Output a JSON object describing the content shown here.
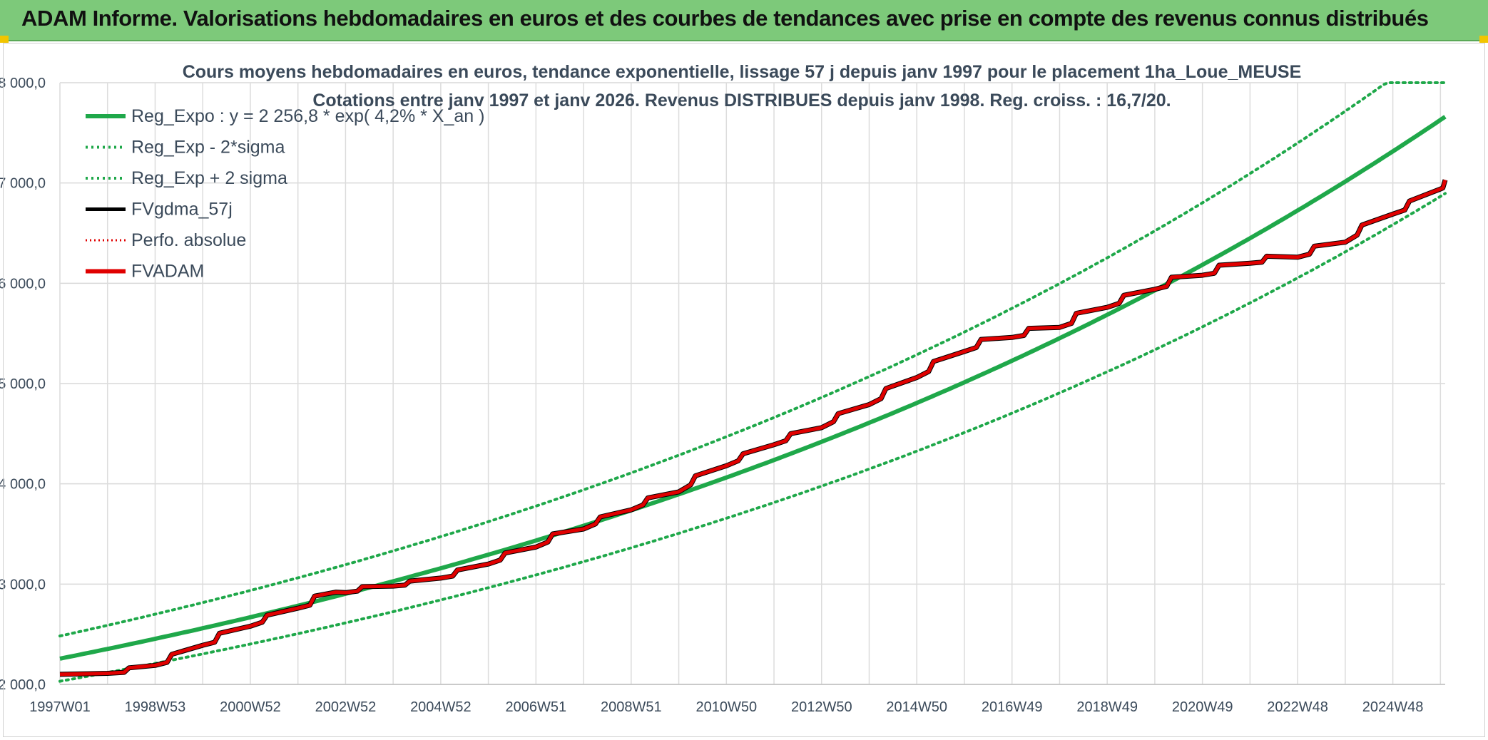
{
  "banner": {
    "title": "ADAM Informe. Valorisations hebdomadaires en euros et des courbes de tendances avec prise en compte des revenus connus distribués"
  },
  "colors": {
    "banner_bg": "#7dc97a",
    "trend_green": "#1fa84a",
    "series_black": "#000000",
    "series_red": "#e00000",
    "corner_yellow": "#f2c500"
  },
  "chart_data": {
    "type": "line",
    "title_line1": "Cours moyens hebdomadaires en euros, tendance exponentielle, lissage 57 j depuis janv 1997 pour le placement 1ha_Loue_MEUSE",
    "title_line2": "Cotations entre janv 1997 et janv 2026. Revenus DISTRIBUES depuis janv 1998. Reg. croiss. : 16,7/20.",
    "xlabel": "",
    "ylabel": "",
    "x_range": [
      1997.0,
      2026.1
    ],
    "ylim": [
      2000,
      8000
    ],
    "grid": true,
    "legend_position": "top-left",
    "y_ticks": [
      2000,
      3000,
      4000,
      5000,
      6000,
      7000,
      8000
    ],
    "y_tick_labels": [
      "2 000,0",
      "3 000,0",
      "4 000,0",
      "5 000,0",
      "6 000,0",
      "7 000,0",
      "8 000,0"
    ],
    "x_ticks": [
      1997.0,
      1999.0,
      2001.0,
      2003.0,
      2005.0,
      2007.0,
      2009.0,
      2011.0,
      2013.0,
      2015.0,
      2017.0,
      2019.0,
      2021.0,
      2023.0,
      2025.0
    ],
    "x_tick_labels": [
      "1997W01",
      "1998W53",
      "2000W52",
      "2002W52",
      "2004W52",
      "2006W51",
      "2008W51",
      "2010W50",
      "2012W50",
      "2014W50",
      "2016W49",
      "2018W49",
      "2020W49",
      "2022W48",
      "2024W48"
    ],
    "regression": {
      "a": 2256.8,
      "rate": 0.042,
      "x0": 1997.0,
      "sigma_factor": 0.1
    },
    "legend": [
      {
        "label": "Reg_Expo : y = 2 256,8 * exp( 4,2% *  X_an )",
        "style": "solid-thick-green"
      },
      {
        "label": "Reg_Exp - 2*sigma",
        "style": "dotted-green"
      },
      {
        "label": "Reg_Exp + 2 sigma",
        "style": "dotted-green"
      },
      {
        "label": "FVgdma_57j",
        "style": "solid-black"
      },
      {
        "label": "Perfo. absolue",
        "style": "dotted-red"
      },
      {
        "label": "FVADAM",
        "style": "solid-red"
      }
    ],
    "series": [
      {
        "name": "Reg_Expo",
        "points": [
          [
            1997.0,
            2257
          ],
          [
            2026.1,
            7680
          ]
        ]
      },
      {
        "name": "Reg_Exp - 2*sigma",
        "points": [
          [
            1997.0,
            2031
          ],
          [
            2026.1,
            6950
          ]
        ]
      },
      {
        "name": "Reg_Exp + 2 sigma",
        "points": [
          [
            1997.0,
            2483
          ],
          [
            2026.1,
            8000
          ]
        ]
      },
      {
        "name": "FVADAM",
        "points": [
          [
            1997.0,
            2100
          ],
          [
            1998.0,
            2110
          ],
          [
            1998.35,
            2120
          ],
          [
            1998.45,
            2165
          ],
          [
            1999.0,
            2190
          ],
          [
            1999.25,
            2220
          ],
          [
            1999.35,
            2300
          ],
          [
            2000.0,
            2390
          ],
          [
            2000.25,
            2420
          ],
          [
            2000.35,
            2510
          ],
          [
            2001.0,
            2580
          ],
          [
            2001.25,
            2620
          ],
          [
            2001.35,
            2690
          ],
          [
            2002.0,
            2760
          ],
          [
            2002.25,
            2790
          ],
          [
            2002.35,
            2880
          ],
          [
            2002.8,
            2920
          ],
          [
            2003.0,
            2915
          ],
          [
            2003.25,
            2930
          ],
          [
            2003.35,
            2975
          ],
          [
            2004.0,
            2980
          ],
          [
            2004.25,
            2990
          ],
          [
            2004.35,
            3030
          ],
          [
            2005.0,
            3060
          ],
          [
            2005.25,
            3080
          ],
          [
            2005.35,
            3140
          ],
          [
            2006.0,
            3200
          ],
          [
            2006.25,
            3240
          ],
          [
            2006.35,
            3310
          ],
          [
            2007.0,
            3370
          ],
          [
            2007.25,
            3420
          ],
          [
            2007.35,
            3500
          ],
          [
            2008.0,
            3550
          ],
          [
            2008.25,
            3600
          ],
          [
            2008.35,
            3670
          ],
          [
            2009.0,
            3740
          ],
          [
            2009.25,
            3790
          ],
          [
            2009.35,
            3860
          ],
          [
            2010.0,
            3920
          ],
          [
            2010.25,
            3990
          ],
          [
            2010.35,
            4080
          ],
          [
            2011.0,
            4180
          ],
          [
            2011.25,
            4230
          ],
          [
            2011.35,
            4300
          ],
          [
            2012.0,
            4390
          ],
          [
            2012.25,
            4430
          ],
          [
            2012.35,
            4500
          ],
          [
            2013.0,
            4560
          ],
          [
            2013.25,
            4620
          ],
          [
            2013.35,
            4700
          ],
          [
            2014.0,
            4790
          ],
          [
            2014.25,
            4850
          ],
          [
            2014.35,
            4950
          ],
          [
            2015.0,
            5060
          ],
          [
            2015.25,
            5120
          ],
          [
            2015.35,
            5220
          ],
          [
            2016.0,
            5320
          ],
          [
            2016.25,
            5360
          ],
          [
            2016.35,
            5440
          ],
          [
            2017.0,
            5460
          ],
          [
            2017.25,
            5480
          ],
          [
            2017.35,
            5550
          ],
          [
            2018.0,
            5560
          ],
          [
            2018.25,
            5600
          ],
          [
            2018.35,
            5700
          ],
          [
            2019.0,
            5760
          ],
          [
            2019.25,
            5800
          ],
          [
            2019.35,
            5880
          ],
          [
            2020.0,
            5940
          ],
          [
            2020.25,
            5970
          ],
          [
            2020.35,
            6060
          ],
          [
            2021.0,
            6080
          ],
          [
            2021.25,
            6100
          ],
          [
            2021.35,
            6180
          ],
          [
            2022.0,
            6200
          ],
          [
            2022.25,
            6210
          ],
          [
            2022.35,
            6270
          ],
          [
            2023.0,
            6260
          ],
          [
            2023.25,
            6290
          ],
          [
            2023.35,
            6370
          ],
          [
            2024.0,
            6410
          ],
          [
            2024.25,
            6480
          ],
          [
            2024.35,
            6580
          ],
          [
            2025.0,
            6690
          ],
          [
            2025.25,
            6730
          ],
          [
            2025.35,
            6820
          ],
          [
            2026.0,
            6940
          ],
          [
            2026.05,
            6950
          ],
          [
            2026.1,
            7030
          ]
        ]
      }
    ]
  }
}
